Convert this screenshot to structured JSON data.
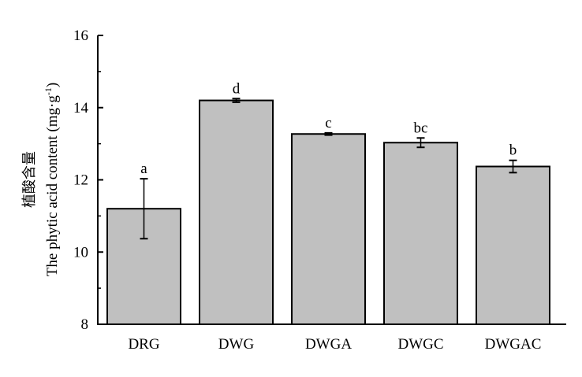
{
  "chart_data": {
    "type": "bar",
    "categories": [
      "DRG",
      "DWG",
      "DWGA",
      "DWGC",
      "DWGAC"
    ],
    "values": [
      11.2,
      14.2,
      13.27,
      13.03,
      12.37
    ],
    "errors": [
      0.83,
      0.05,
      0.03,
      0.13,
      0.17
    ],
    "significance_labels": [
      "a",
      "d",
      "c",
      "bc",
      "b"
    ],
    "ylabel_cn": "植酸含量",
    "ylabel": "The phytic acid content (mg·g",
    "ylabel_sup": "-1",
    "ylabel_end": ")",
    "ylim": [
      8,
      16
    ],
    "yticks": [
      8,
      10,
      12,
      14,
      16
    ],
    "bar_color": "#c0c0c0",
    "grid": false
  }
}
